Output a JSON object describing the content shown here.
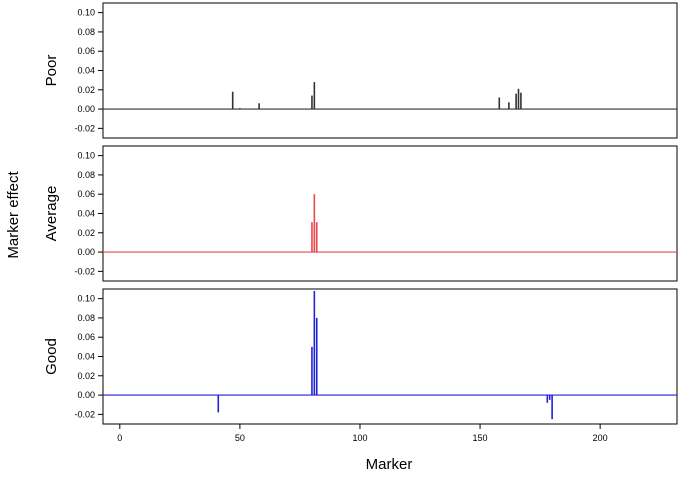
{
  "chart_data": {
    "type": "bar",
    "xlabel": "Marker",
    "ylabel": "Marker effect",
    "xlim": [
      -7,
      232
    ],
    "xticks": [
      0,
      50,
      100,
      150,
      200
    ],
    "ylim": [
      -0.03,
      0.11
    ],
    "yticks": [
      -0.02,
      0.0,
      0.02,
      0.04,
      0.06,
      0.08,
      0.1
    ],
    "yticklabels": [
      "-0.02",
      "0.00",
      "0.02",
      "0.04",
      "0.06",
      "0.08",
      "0.10"
    ],
    "grid": false,
    "panels": [
      {
        "label": "Poor",
        "color": "#333333",
        "points": [
          {
            "x": 47,
            "y": 0.018
          },
          {
            "x": 50,
            "y": 0.001
          },
          {
            "x": 58,
            "y": 0.006
          },
          {
            "x": 80,
            "y": 0.014
          },
          {
            "x": 81,
            "y": 0.028
          },
          {
            "x": 158,
            "y": 0.012
          },
          {
            "x": 162,
            "y": 0.007
          },
          {
            "x": 165,
            "y": 0.016
          },
          {
            "x": 166,
            "y": 0.021
          },
          {
            "x": 167,
            "y": 0.017
          }
        ]
      },
      {
        "label": "Average",
        "color": "#e8474e",
        "points": [
          {
            "x": 80,
            "y": 0.031
          },
          {
            "x": 81,
            "y": 0.06
          },
          {
            "x": 82,
            "y": 0.031
          }
        ]
      },
      {
        "label": "Good",
        "color": "#2323d6",
        "points": [
          {
            "x": 41,
            "y": -0.018
          },
          {
            "x": 80,
            "y": 0.05
          },
          {
            "x": 81,
            "y": 0.108
          },
          {
            "x": 82,
            "y": 0.08
          },
          {
            "x": 178,
            "y": -0.008
          },
          {
            "x": 179,
            "y": -0.005
          },
          {
            "x": 180,
            "y": -0.025
          }
        ]
      }
    ]
  }
}
